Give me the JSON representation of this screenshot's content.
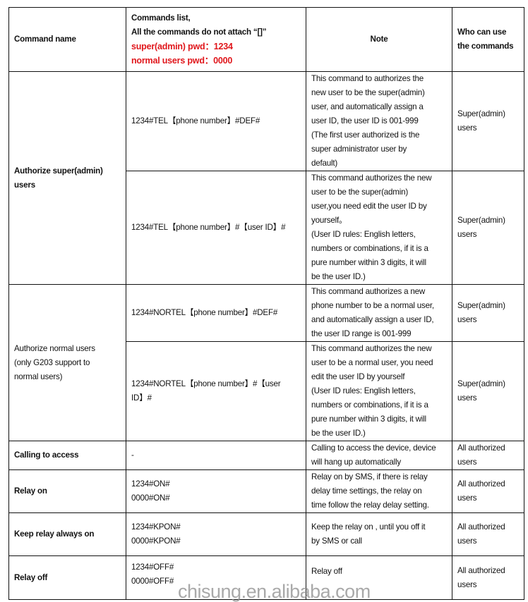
{
  "header": {
    "command_name": "Command name",
    "commands_list_line1": "Commands list,",
    "commands_list_line2": "All the commands do not attach “[]”",
    "super_pwd": "super(admin) pwd：1234",
    "normal_pwd": "normal users pwd：0000",
    "note": "Note",
    "who": "Who can use\nthe commands"
  },
  "rows": [
    {
      "name": "Authorize super(admin)\nusers",
      "command": "1234#TEL【phone number】#DEF#",
      "note": "This command to authorizes the\nnew user to be the super(admin)\nuser, and automatically assign a\nuser ID, the user ID is 001-999\n(The first user authorized is the\nsuper administrator user by\ndefault)",
      "who": "Super(admin)\nusers"
    },
    {
      "command": "1234#TEL【phone number】#【user ID】#",
      "note": "This command authorizes the new\nuser to be the super(admin)\nuser,you need edit the user ID by\nyourself。\n(User ID rules: English letters,\nnumbers or combinations, if it is a\npure number within 3 digits, it will\nbe the user ID.)",
      "who": "Super(admin)\nusers"
    },
    {
      "name": "Authorize normal users\n(only G203 support to\nnormal users)",
      "command": "1234#NORTEL【phone number】#DEF#",
      "note": "This command authorizes a new\nphone number to be a normal user,\nand automatically assign a user ID,\nthe user ID range is 001-999",
      "who": "Super(admin)\nusers"
    },
    {
      "command": "1234#NORTEL【phone number】#【user\nID】#",
      "note": "This command authorizes the new\nuser to be a normal user, you need\nedit the user ID by yourself\n(User ID rules: English letters,\nnumbers or combinations, if it is a\npure number within 3 digits, it will\nbe the user ID.)",
      "who": "Super(admin)\nusers"
    },
    {
      "name": "Calling to access",
      "command": "-",
      "note": "Calling to access the device, device\nwill hang up automatically",
      "who": "All authorized\nusers"
    },
    {
      "name": "Relay on",
      "command": "1234#ON#\n0000#ON#",
      "note": "Relay on by SMS, if there is relay\ndelay time settings, the relay on\ntime follow the relay delay setting.",
      "who": "All authorized\nusers"
    },
    {
      "name": "Keep relay always on",
      "command": "1234#KPON#\n0000#KPON#",
      "note": "Keep the relay on , until you off it\nby SMS or call",
      "who": "All authorized\nusers"
    },
    {
      "name": "Relay off",
      "command": "1234#OFF#\n0000#OFF#",
      "note": "Relay off",
      "who": "All authorized\nusers"
    }
  ],
  "watermark": "chisung.en.alibaba.com",
  "colors": {
    "password_text": "#e0161b"
  }
}
